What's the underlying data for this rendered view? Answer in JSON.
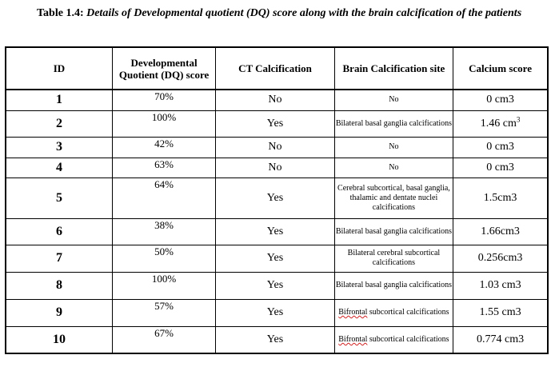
{
  "caption": {
    "label": "Table 1.4:",
    "text": "Details of Developmental quotient (DQ) score along with the brain calcification of the patients"
  },
  "headers": {
    "id": "ID",
    "dq": "Developmental Quotient (DQ) score",
    "ct": "CT Calcification",
    "site": "Brain Calcification site",
    "ca": "Calcium score"
  },
  "rows": [
    {
      "id": "1",
      "dq": "70%",
      "ct": "No",
      "site": "No",
      "ca": "0 cm3",
      "ca_sup": ""
    },
    {
      "id": "2",
      "dq": "100%",
      "ct": "Yes",
      "site": "Bilateral basal ganglia calcifications",
      "ca": "1.46 cm",
      "ca_sup": "3"
    },
    {
      "id": "3",
      "dq": "42%",
      "ct": "No",
      "site": "No",
      "ca": "0 cm3",
      "ca_sup": ""
    },
    {
      "id": "4",
      "dq": "63%",
      "ct": "No",
      "site": "No",
      "ca": "0 cm3",
      "ca_sup": ""
    },
    {
      "id": "5",
      "dq": "64%",
      "ct": "Yes",
      "site": "Cerebral subcortical, basal ganglia, thalamic and dentate nuclei calcifications",
      "ca": "1.5cm3",
      "ca_sup": ""
    },
    {
      "id": "6",
      "dq": "38%",
      "ct": "Yes",
      "site": "Bilateral basal ganglia calcifications",
      "ca": "1.66cm3",
      "ca_sup": ""
    },
    {
      "id": "7",
      "dq": "50%",
      "ct": "Yes",
      "site": "Bilateral cerebral subcortical calcifications",
      "ca": "0.256cm3",
      "ca_sup": ""
    },
    {
      "id": "8",
      "dq": "100%",
      "ct": "Yes",
      "site": "Bilateral basal ganglia calcifications",
      "ca": "1.03 cm3",
      "ca_sup": ""
    },
    {
      "id": "9",
      "dq": "57%",
      "ct": "Yes",
      "site_word": "Bifrontal",
      "site": "subcortical calcifications",
      "ca": "1.55 cm3",
      "ca_sup": ""
    },
    {
      "id": "10",
      "dq": "67%",
      "ct": "Yes",
      "site_word": "Bifrontal",
      "site": "subcortical calcifications",
      "ca": "0.774 cm3",
      "ca_sup": ""
    }
  ],
  "colors": {
    "border": "#000000",
    "spellcheck_underline": "#d02020"
  }
}
